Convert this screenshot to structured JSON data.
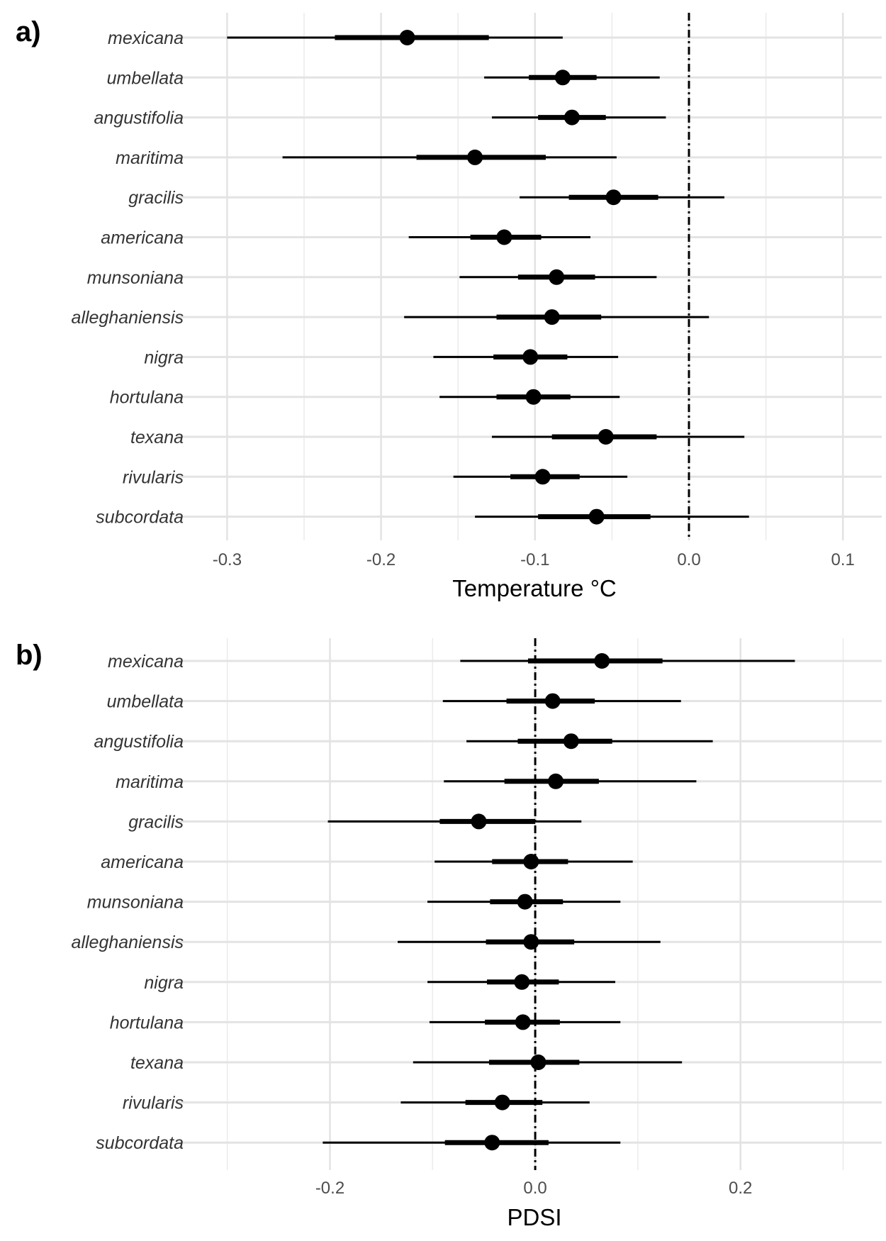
{
  "chart_data": [
    {
      "type": "interval",
      "panel_label": "a)",
      "xlabel": "Temperature °C",
      "xlim": [
        -0.32,
        0.12
      ],
      "xticks": [
        -0.3,
        -0.2,
        -0.1,
        0.0,
        0.1
      ],
      "xtick_labels": [
        "-0.3",
        "-0.2",
        "-0.1",
        "0.0",
        "0.1"
      ],
      "minor_gridlines": [
        -0.25,
        -0.15,
        -0.05,
        0.05
      ],
      "reference_line": 0,
      "grid": true,
      "categories": [
        "mexicana",
        "umbellata",
        "angustifolia",
        "maritima",
        "gracilis",
        "americana",
        "munsoniana",
        "alleghaniensis",
        "nigra",
        "hortulana",
        "texana",
        "rivularis",
        "subcordata"
      ],
      "series": [
        {
          "estimate": [
            -0.183,
            -0.082,
            -0.076,
            -0.139,
            -0.049,
            -0.12,
            -0.086,
            -0.089,
            -0.103,
            -0.101,
            -0.054,
            -0.095,
            -0.06
          ],
          "inner_low": [
            -0.23,
            -0.104,
            -0.098,
            -0.177,
            -0.078,
            -0.142,
            -0.111,
            -0.125,
            -0.127,
            -0.125,
            -0.089,
            -0.116,
            -0.098
          ],
          "inner_high": [
            -0.13,
            -0.06,
            -0.054,
            -0.093,
            -0.02,
            -0.096,
            -0.061,
            -0.057,
            -0.079,
            -0.077,
            -0.021,
            -0.071,
            -0.025
          ],
          "outer_low": [
            -0.3,
            -0.133,
            -0.128,
            -0.264,
            -0.11,
            -0.182,
            -0.149,
            -0.185,
            -0.166,
            -0.162,
            -0.128,
            -0.153,
            -0.139
          ],
          "outer_high": [
            -0.082,
            -0.019,
            -0.015,
            -0.047,
            0.023,
            -0.064,
            -0.021,
            0.013,
            -0.046,
            -0.045,
            0.036,
            -0.04,
            0.039
          ]
        }
      ]
    },
    {
      "type": "interval",
      "panel_label": "b)",
      "xlabel": "PDSI",
      "xlim": [
        -0.33,
        0.33
      ],
      "xticks": [
        -0.2,
        0.0,
        0.2
      ],
      "xtick_labels": [
        "-0.2",
        "0.0",
        "0.2"
      ],
      "minor_gridlines": [
        -0.3,
        -0.1,
        0.1,
        0.3
      ],
      "reference_line": 0,
      "grid": true,
      "categories": [
        "mexicana",
        "umbellata",
        "angustifolia",
        "maritima",
        "gracilis",
        "americana",
        "munsoniana",
        "alleghaniensis",
        "nigra",
        "hortulana",
        "texana",
        "rivularis",
        "subcordata"
      ],
      "series": [
        {
          "estimate": [
            0.065,
            0.017,
            0.035,
            0.02,
            -0.055,
            -0.004,
            -0.01,
            -0.004,
            -0.013,
            -0.012,
            0.003,
            -0.032,
            -0.042
          ],
          "inner_low": [
            -0.007,
            -0.028,
            -0.017,
            -0.03,
            -0.093,
            -0.042,
            -0.044,
            -0.048,
            -0.047,
            -0.049,
            -0.045,
            -0.068,
            -0.088
          ],
          "inner_high": [
            0.124,
            0.058,
            0.075,
            0.062,
            0.0,
            0.032,
            0.027,
            0.038,
            0.023,
            0.024,
            0.043,
            0.007,
            0.013
          ],
          "outer_low": [
            -0.073,
            -0.09,
            -0.067,
            -0.089,
            -0.202,
            -0.098,
            -0.105,
            -0.134,
            -0.105,
            -0.103,
            -0.119,
            -0.131,
            -0.207
          ],
          "outer_high": [
            0.253,
            0.142,
            0.173,
            0.157,
            0.045,
            0.095,
            0.083,
            0.122,
            0.078,
            0.083,
            0.143,
            0.053,
            0.083
          ]
        }
      ]
    }
  ]
}
